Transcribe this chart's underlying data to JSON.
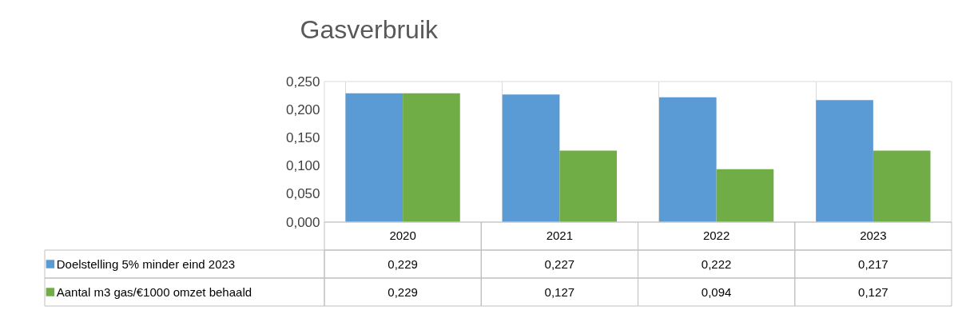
{
  "chart_data": {
    "type": "bar",
    "title": "Gasverbruik",
    "categories": [
      "2020",
      "2021",
      "2022",
      "2023"
    ],
    "series": [
      {
        "name": "Doelstelling 5% minder eind 2023",
        "color": "#5b9bd5",
        "values": [
          0.229,
          0.227,
          0.222,
          0.217
        ],
        "value_labels": [
          "0,229",
          "0,227",
          "0,222",
          "0,217"
        ]
      },
      {
        "name": "Aantal m3 gas/€1000 omzet behaald",
        "color": "#70ad47",
        "values": [
          0.229,
          0.127,
          0.094,
          0.127
        ],
        "value_labels": [
          "0,229",
          "0,127",
          "0,094",
          "0,127"
        ]
      }
    ],
    "ylim": [
      0,
      0.25
    ],
    "yticks": [
      {
        "value": 0,
        "label": "0,000"
      },
      {
        "value": 0.05,
        "label": "0,050"
      },
      {
        "value": 0.1,
        "label": "0,100"
      },
      {
        "value": 0.15,
        "label": "0,150"
      },
      {
        "value": 0.2,
        "label": "0,200"
      },
      {
        "value": 0.25,
        "label": "0,250"
      }
    ],
    "grid": "x",
    "legend": "bottom left"
  }
}
